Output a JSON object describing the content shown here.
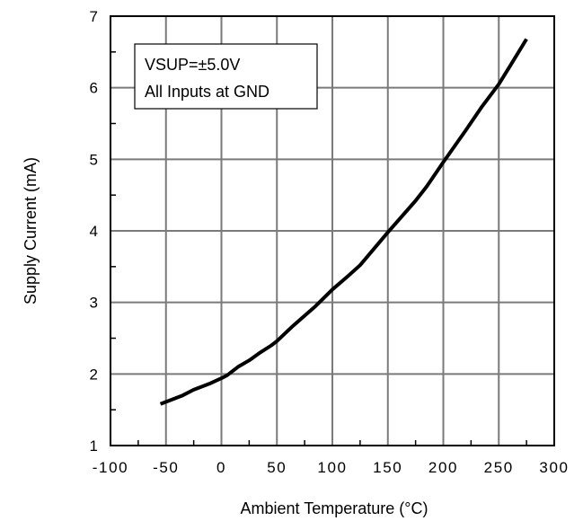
{
  "chart_data": {
    "type": "line",
    "title": "",
    "xlabel": "Ambient Temperature (°C)",
    "ylabel": "Supply Current (mA)",
    "xlim": [
      -100,
      300
    ],
    "ylim": [
      1,
      7
    ],
    "xticks": [
      -100,
      -50,
      0,
      50,
      100,
      150,
      200,
      250,
      300
    ],
    "yticks": [
      1,
      2,
      3,
      4,
      5,
      6,
      7
    ],
    "x_tick_labels": [
      "-100",
      "-50",
      "0",
      "50",
      "100",
      "150",
      "200",
      "250",
      "300"
    ],
    "y_tick_labels": [
      "1",
      "2",
      "3",
      "4",
      "5",
      "6",
      "7"
    ],
    "grid": true,
    "annotation": {
      "lines": [
        "VSUP=±5.0V",
        "All Inputs at GND"
      ],
      "placement": "top-left"
    },
    "series": [
      {
        "x": [
          -55,
          -35,
          -25,
          -10,
          0,
          5,
          15,
          25,
          35,
          45,
          50,
          65,
          85,
          100,
          115,
          125,
          150,
          175,
          185,
          200,
          220,
          235,
          250,
          260,
          275
        ],
        "y": [
          1.58,
          1.7,
          1.78,
          1.87,
          1.94,
          1.98,
          2.1,
          2.19,
          2.3,
          2.4,
          2.46,
          2.68,
          2.95,
          3.18,
          3.38,
          3.52,
          3.98,
          4.42,
          4.62,
          4.96,
          5.4,
          5.74,
          6.05,
          6.3,
          6.68
        ]
      }
    ]
  }
}
